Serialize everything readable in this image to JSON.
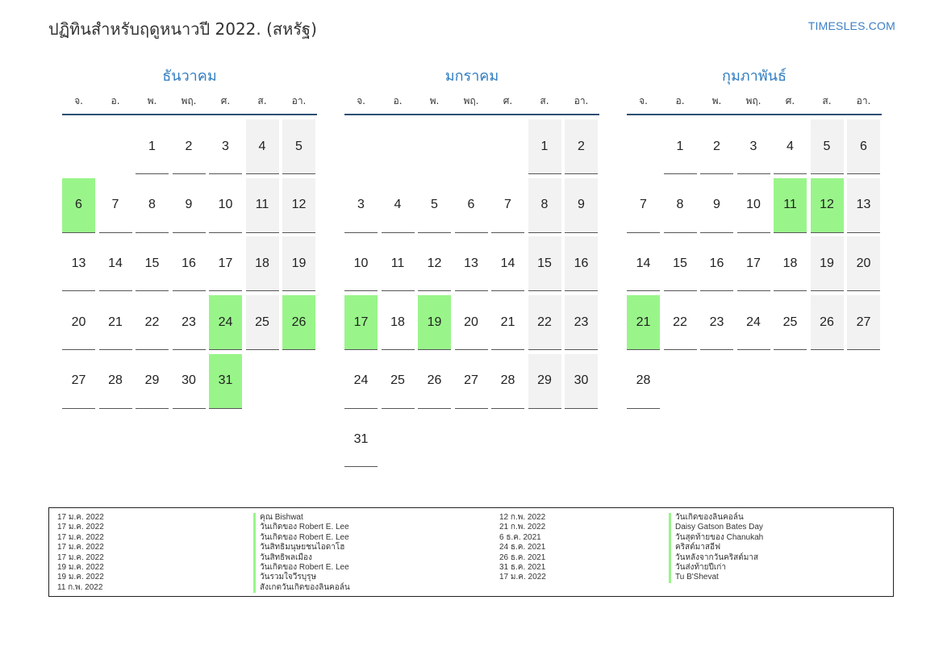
{
  "title": "ปฏิทินสำหรับฤดูหนาวปี 2022. (สหรัฐ)",
  "brand": "TIMESLES.COM",
  "weekdays": [
    "จ.",
    "อ.",
    "พ.",
    "พฤ.",
    "ศ.",
    "ส.",
    "อา."
  ],
  "months": [
    {
      "name": "ธันวาคม",
      "start_offset": 2,
      "days": 31,
      "holidays": [
        6,
        24,
        26,
        31
      ]
    },
    {
      "name": "มกราคม",
      "start_offset": 5,
      "days": 31,
      "holidays": [
        17,
        19
      ]
    },
    {
      "name": "กุมภาพันธ์",
      "start_offset": 1,
      "days": 28,
      "holidays": [
        11,
        12,
        21
      ]
    }
  ],
  "legend_left": [
    {
      "date": "17 ม.ค. 2022",
      "name": "คุณ Bishwat"
    },
    {
      "date": "17 ม.ค. 2022",
      "name": "วันเกิดของ Robert E. Lee"
    },
    {
      "date": "17 ม.ค. 2022",
      "name": "วันเกิดของ Robert E. Lee"
    },
    {
      "date": "17 ม.ค. 2022",
      "name": "วันสิทธิมนุษยชนไอดาโฮ"
    },
    {
      "date": "17 ม.ค. 2022",
      "name": "วันสิทธิพลเมือง"
    },
    {
      "date": "19 ม.ค. 2022",
      "name": "วันเกิดของ Robert E. Lee"
    },
    {
      "date": "19 ม.ค. 2022",
      "name": "วันรวมใจวีรบุรุษ"
    },
    {
      "date": "11 ก.พ. 2022",
      "name": "สังเกตวันเกิดของลินคอล์น"
    }
  ],
  "legend_right": [
    {
      "date": "12 ก.พ. 2022",
      "name": "วันเกิดของลินคอล์น"
    },
    {
      "date": "21 ก.พ. 2022",
      "name": "Daisy Gatson Bates Day"
    },
    {
      "date": "6 ธ.ค. 2021",
      "name": "วันสุดท้ายของ Chanukah"
    },
    {
      "date": "24 ธ.ค. 2021",
      "name": "คริสต์มาสอีฟ"
    },
    {
      "date": "26 ธ.ค. 2021",
      "name": "วันหลังจากวันคริสต์มาส"
    },
    {
      "date": "31 ธ.ค. 2021",
      "name": "วันส่งท้ายปีเก่า"
    },
    {
      "date": "17 ม.ค. 2022",
      "name": "Tu B'Shevat"
    }
  ]
}
